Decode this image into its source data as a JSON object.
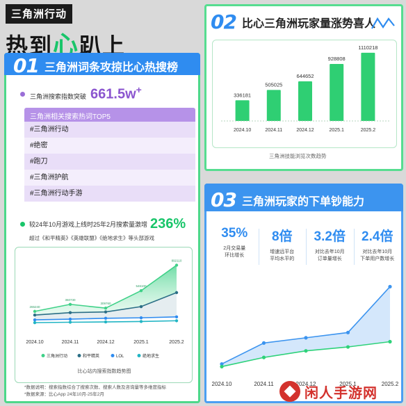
{
  "header": {
    "tag": "三角洲行动",
    "title_pre": "热到",
    "title_highlight": "心",
    "title_post": "趴上"
  },
  "section1": {
    "num": "01",
    "title": "三角洲词条攻掠比心热搜榜",
    "index_label": "三角洲搜索指数突破",
    "index_value": "661.5w",
    "index_sup": "+",
    "hot_list_title": "三角洲相关搜索热词TOP5",
    "hot_list": [
      "#三角洲行动",
      "#绝密",
      "#跑刀",
      "#三角洲护航",
      "#三角洲行动手游"
    ],
    "growth_text": "较24年10月游戏上线时25年2月搜索量激增",
    "growth_value": "236%",
    "growth_sub": "超过《和平精英》《英雄联盟》《绝地求生》等头部游戏",
    "chart_caption": "比心站内搜索指数趋势图",
    "notes": [
      "*数据说明：搜索指数综合了搜索次数、搜索人数及咨询量等多维度指标",
      "*数据来源：比心App 24年10月-25年2月"
    ]
  },
  "section2": {
    "num": "02",
    "title": "比心三角洲玩家量涨势喜人",
    "caption": "三角洲技能浏览次数趋势"
  },
  "section3": {
    "num": "03",
    "title": "三角洲玩家的下单钞能力",
    "stats": [
      {
        "value": "35%",
        "desc1": "2月交易量",
        "desc2": "环比增长"
      },
      {
        "value": "8倍",
        "desc1": "增速远平台",
        "desc2": "平均水平的"
      },
      {
        "value": "3.2倍",
        "desc1": "对比去年10月",
        "desc2": "订单量增长"
      },
      {
        "value": "2.4倍",
        "desc1": "对比去年10月",
        "desc2": "下单用户数增长"
      }
    ]
  },
  "watermark": {
    "text": "闲人手游网"
  },
  "colors": {
    "green": "#19c56a",
    "teal": "#2a6f8a",
    "blue": "#2f8cf0",
    "cyan": "#24b3c8",
    "purple": "#8b55cf"
  },
  "chart_data": [
    {
      "type": "area",
      "title": "比心站内搜索指数趋势图",
      "categories": [
        "2024.10",
        "2024.11",
        "2024.12",
        "2025.1",
        "2025.2"
      ],
      "series": [
        {
          "name": "三角洲行动",
          "values": [
            265240,
            360730,
            309760,
            546100,
            892110
          ],
          "color": "#3fd188"
        },
        {
          "name": "和平精英",
          "values": [
            215000,
            248000,
            258000,
            330000,
            520000
          ],
          "color": "#2b6f86"
        },
        {
          "name": "LOL",
          "values": [
            150000,
            160000,
            172000,
            178000,
            190000
          ],
          "color": "#2f8cf0"
        },
        {
          "name": "绝地求生",
          "values": [
            112000,
            118000,
            122000,
            128000,
            138000
          ],
          "color": "#21b5c4"
        }
      ],
      "data_labels_series": "三角洲行动",
      "legend": "bottom",
      "ylim": [
        0,
        1000000
      ]
    },
    {
      "type": "bar",
      "title": "三角洲技能浏览次数趋势",
      "categories": [
        "2024.10",
        "2024.11",
        "2024.12",
        "2025.1",
        "2025.2"
      ],
      "values": [
        336181,
        505025,
        644652,
        928808,
        1110218
      ],
      "ylim": [
        0,
        1200000
      ]
    },
    {
      "type": "area",
      "categories": [
        "2024.10",
        "2024.11",
        "2024.12",
        "2025.1",
        "2025.2"
      ],
      "series": [
        {
          "name": "",
          "values": [
            10,
            42,
            50,
            58,
            128
          ],
          "color": "#3c94ef"
        },
        {
          "name": "",
          "values": [
            6,
            20,
            30,
            36,
            44
          ],
          "color": "#2ed27a"
        }
      ],
      "ylim": [
        0,
        140
      ]
    }
  ]
}
